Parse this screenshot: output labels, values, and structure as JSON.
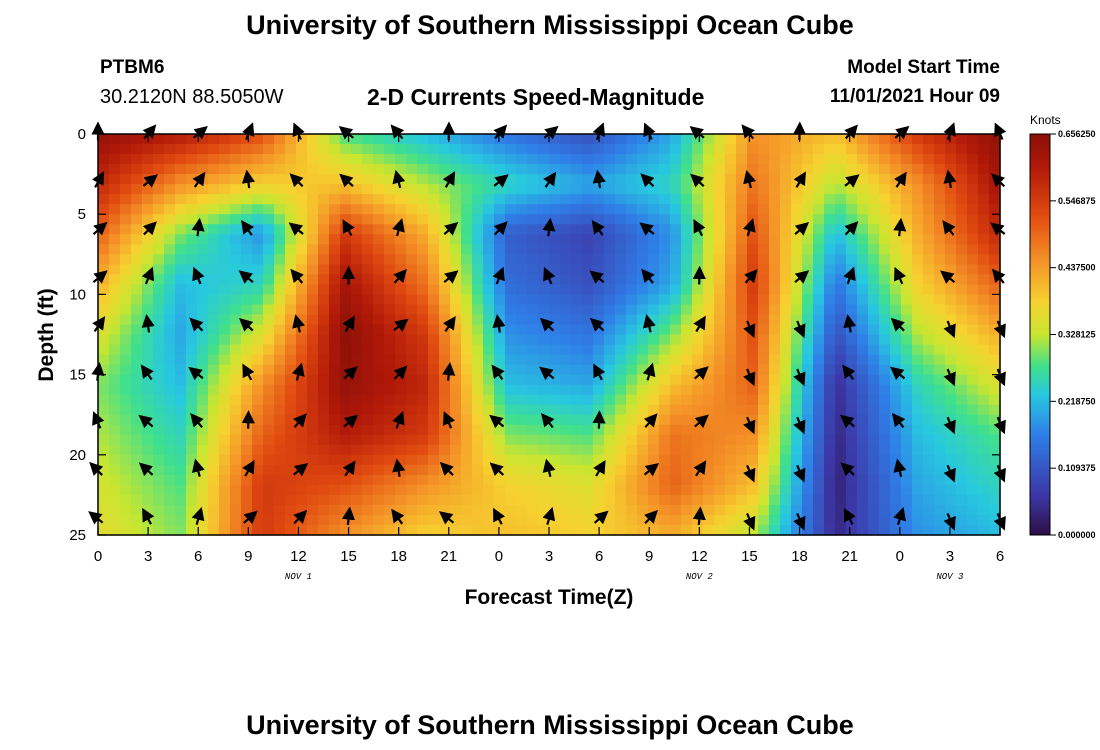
{
  "header": {
    "title": "University of Southern Mississippi Ocean Cube",
    "station": "PTBM6",
    "coords": "30.2120N  88.5050W",
    "subtitle": "2-D Currents Speed-Magnitude",
    "model_start_label": "Model Start Time",
    "model_start_value": "11/01/2021 Hour 09"
  },
  "footer": {
    "title": "University of Southern Mississippi Ocean Cube"
  },
  "chart_data": {
    "type": "heatmap",
    "title": "2-D Currents Speed-Magnitude",
    "xlabel": "Forecast Time(Z)",
    "ylabel": "Depth (ft)",
    "x_tick_labels": [
      "0",
      "3",
      "6",
      "9",
      "12",
      "15",
      "18",
      "21",
      "0",
      "3",
      "6",
      "9",
      "12",
      "15",
      "18",
      "21",
      "0",
      "3",
      "6"
    ],
    "x_range_hours": [
      0,
      54
    ],
    "y_ticks": [
      0,
      5,
      10,
      15,
      20,
      25
    ],
    "ylim": [
      0,
      25
    ],
    "y_inverted": true,
    "date_labels": [
      {
        "text": "NOV 1",
        "hour": 12
      },
      {
        "text": "NOV 2",
        "hour": 36
      },
      {
        "text": "NOV 3",
        "hour": 51
      }
    ],
    "colorbar": {
      "label": "Knots",
      "min": 0,
      "max": 0.65625,
      "tick_labels": [
        "0.656250",
        "0.546875",
        "0.437500",
        "0.328125",
        "0.218750",
        "0.109375",
        "0.000000"
      ],
      "colors": [
        "#2c0e45",
        "#3c38a8",
        "#2f7fe8",
        "#28c8e0",
        "#40e08c",
        "#c8e630",
        "#f6d230",
        "#f59428",
        "#e04a10",
        "#b01808",
        "#8a1008"
      ]
    },
    "vector_hours": [
      0,
      3,
      6,
      9,
      12,
      15,
      18,
      21,
      24,
      27,
      30,
      33,
      36,
      39,
      42,
      45,
      48,
      51,
      54
    ],
    "vector_depths": [
      0,
      3,
      6,
      9,
      12,
      15,
      18,
      21,
      24
    ],
    "speed_grid_knots": [
      [
        0.64,
        0.6,
        0.52,
        0.28,
        0.22,
        0.15,
        0.1,
        0.2,
        0.45,
        0.4,
        0.55,
        0.65
      ],
      [
        0.58,
        0.45,
        0.38,
        0.4,
        0.32,
        0.25,
        0.2,
        0.25,
        0.48,
        0.32,
        0.45,
        0.62
      ],
      [
        0.5,
        0.3,
        0.18,
        0.55,
        0.42,
        0.12,
        0.08,
        0.18,
        0.52,
        0.22,
        0.42,
        0.58
      ],
      [
        0.42,
        0.22,
        0.25,
        0.62,
        0.48,
        0.14,
        0.1,
        0.2,
        0.55,
        0.15,
        0.38,
        0.5
      ],
      [
        0.35,
        0.2,
        0.35,
        0.65,
        0.55,
        0.18,
        0.15,
        0.3,
        0.52,
        0.1,
        0.32,
        0.42
      ],
      [
        0.3,
        0.22,
        0.45,
        0.64,
        0.58,
        0.22,
        0.2,
        0.4,
        0.5,
        0.05,
        0.25,
        0.35
      ],
      [
        0.32,
        0.25,
        0.5,
        0.6,
        0.55,
        0.3,
        0.28,
        0.48,
        0.45,
        0.04,
        0.22,
        0.28
      ],
      [
        0.34,
        0.28,
        0.55,
        0.52,
        0.45,
        0.38,
        0.35,
        0.5,
        0.4,
        0.03,
        0.2,
        0.25
      ],
      [
        0.36,
        0.3,
        0.55,
        0.45,
        0.38,
        0.4,
        0.38,
        0.42,
        0.32,
        0.04,
        0.18,
        0.22
      ]
    ]
  }
}
